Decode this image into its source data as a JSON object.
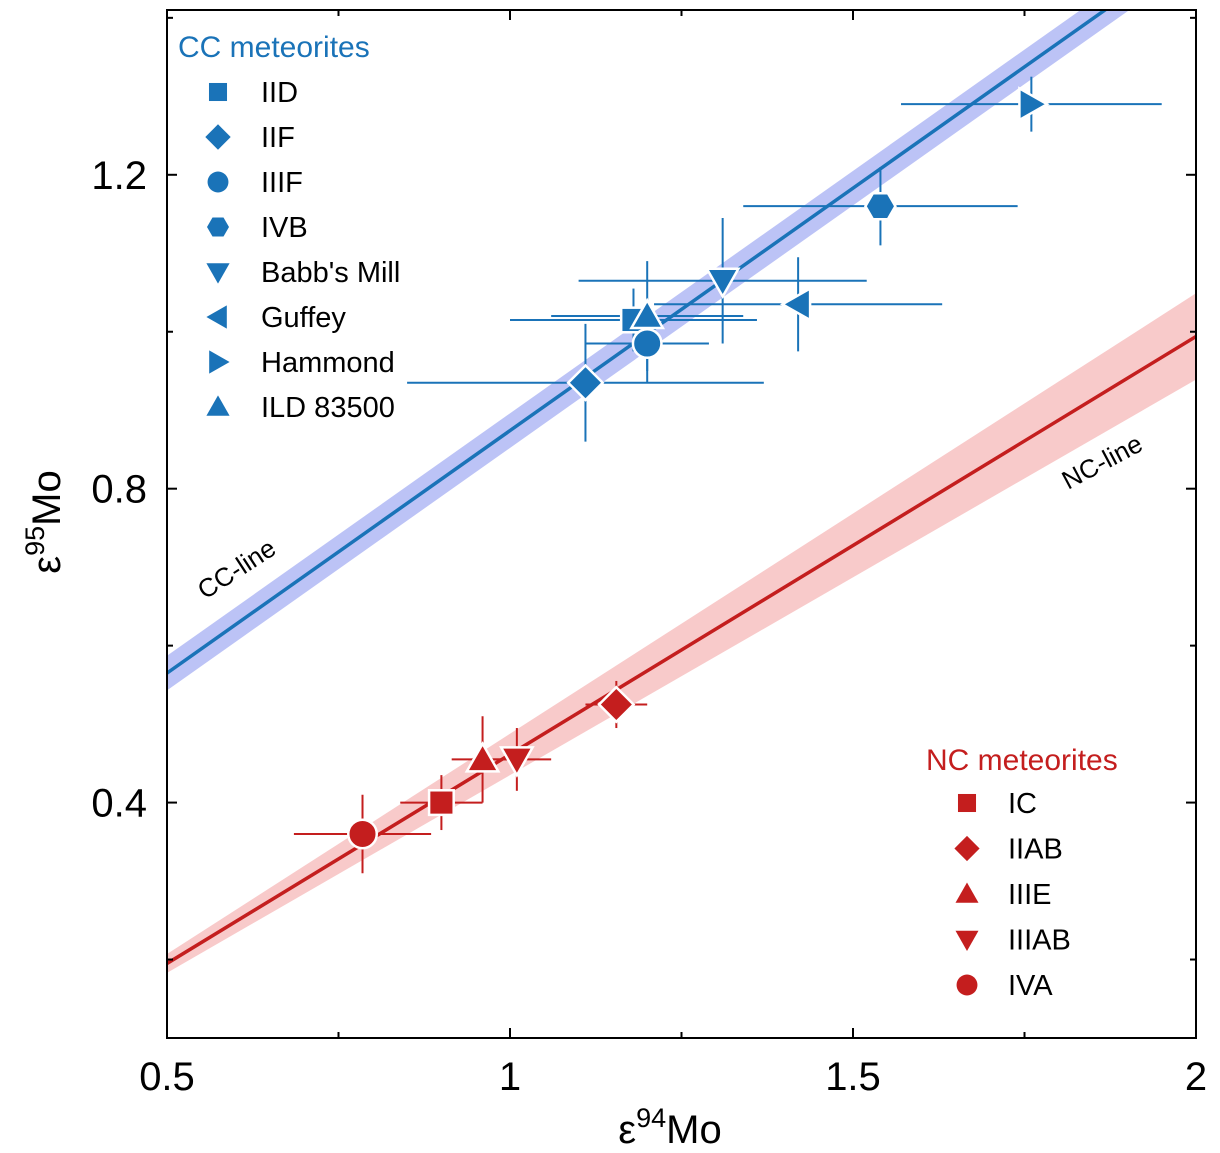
{
  "chart_data": {
    "type": "scatter",
    "xlabel": {
      "prefix": "ε",
      "sup": "94",
      "suffix": "Mo"
    },
    "ylabel": {
      "prefix": "ε",
      "sup": "95",
      "suffix": "Mo"
    },
    "xlim": [
      0.5,
      2.0
    ],
    "ylim": [
      0.1,
      1.41
    ],
    "x_ticks": [
      "0.5",
      "1",
      "1.5",
      "2"
    ],
    "x_tick_values": [
      0.5,
      1.0,
      1.5,
      2.0
    ],
    "y_ticks": [
      "0.4",
      "0.8",
      "1.2"
    ],
    "y_tick_values": [
      0.4,
      0.8,
      1.2
    ],
    "grid": false,
    "lines": [
      {
        "label": "CC-line",
        "color": "#1a73b8",
        "band_color": "#8f9bf0",
        "x": [
          0.5,
          2.0
        ],
        "y": [
          0.565,
          1.492
        ],
        "band": 0.022
      },
      {
        "label": "NC-line",
        "color": "#c41e1e",
        "band_color": "#f4a7a7",
        "x": [
          0.5,
          2.0
        ],
        "y": [
          0.195,
          0.994
        ],
        "band_at_start": 0.012,
        "band_at_end": 0.055
      }
    ],
    "legends": [
      {
        "title": "CC meteorites",
        "color": "#1a73b8",
        "position": "top-left",
        "entries": [
          {
            "marker": "square",
            "label": "IID"
          },
          {
            "marker": "diamond",
            "label": "IIF"
          },
          {
            "marker": "circle",
            "label": "IIIF"
          },
          {
            "marker": "hexagon",
            "label": "IVB"
          },
          {
            "marker": "triangle-down",
            "label": "Babb's Mill"
          },
          {
            "marker": "triangle-left",
            "label": "Guffey"
          },
          {
            "marker": "triangle-right",
            "label": "Hammond"
          },
          {
            "marker": "triangle-up",
            "label": "ILD 83500"
          }
        ]
      },
      {
        "title": "NC meteorites",
        "color": "#c41e1e",
        "position": "bottom-right",
        "entries": [
          {
            "marker": "square",
            "label": "IC"
          },
          {
            "marker": "diamond",
            "label": "IIAB"
          },
          {
            "marker": "triangle-up",
            "label": "IIIE"
          },
          {
            "marker": "triangle-down",
            "label": "IIIAB"
          },
          {
            "marker": "circle",
            "label": "IVA"
          }
        ]
      }
    ],
    "series": [
      {
        "name": "IID",
        "group": "CC",
        "marker": "square",
        "x": 1.18,
        "y": 1.015,
        "xerr": 0.18,
        "yerr": 0.04
      },
      {
        "name": "IIF",
        "group": "CC",
        "marker": "diamond",
        "x": 1.11,
        "y": 0.935,
        "xerr": 0.26,
        "yerr": 0.075
      },
      {
        "name": "IIIF",
        "group": "CC",
        "marker": "circle",
        "x": 1.2,
        "y": 0.985,
        "xerr": 0.09,
        "yerr": 0.05
      },
      {
        "name": "IVB",
        "group": "CC",
        "marker": "hexagon",
        "x": 1.54,
        "y": 1.16,
        "xerr": 0.2,
        "yerr": 0.05
      },
      {
        "name": "Babb's Mill",
        "group": "CC",
        "marker": "triangle-down",
        "x": 1.31,
        "y": 1.065,
        "xerr": 0.21,
        "yerr": 0.08
      },
      {
        "name": "Guffey",
        "group": "CC",
        "marker": "triangle-left",
        "x": 1.42,
        "y": 1.035,
        "xerr": 0.21,
        "yerr": 0.06
      },
      {
        "name": "Hammond",
        "group": "CC",
        "marker": "triangle-right",
        "x": 1.76,
        "y": 1.29,
        "xerr": 0.19,
        "yerr": 0.035
      },
      {
        "name": "ILD 83500",
        "group": "CC",
        "marker": "triangle-up",
        "x": 1.2,
        "y": 1.02,
        "xerr": 0.14,
        "yerr": 0.07
      },
      {
        "name": "IC",
        "group": "NC",
        "marker": "square",
        "x": 0.9,
        "y": 0.4,
        "xerr": 0.06,
        "yerr": 0.035
      },
      {
        "name": "IIAB",
        "group": "NC",
        "marker": "diamond",
        "x": 1.155,
        "y": 0.525,
        "xerr": 0.045,
        "yerr": 0.03
      },
      {
        "name": "IIIE",
        "group": "NC",
        "marker": "triangle-up",
        "x": 0.96,
        "y": 0.455,
        "xerr": 0.045,
        "yerr": 0.055
      },
      {
        "name": "IIIAB",
        "group": "NC",
        "marker": "triangle-down",
        "x": 1.01,
        "y": 0.455,
        "xerr": 0.05,
        "yerr": 0.04
      },
      {
        "name": "IVA",
        "group": "NC",
        "marker": "circle",
        "x": 0.785,
        "y": 0.36,
        "xerr": 0.1,
        "yerr": 0.05
      }
    ]
  }
}
